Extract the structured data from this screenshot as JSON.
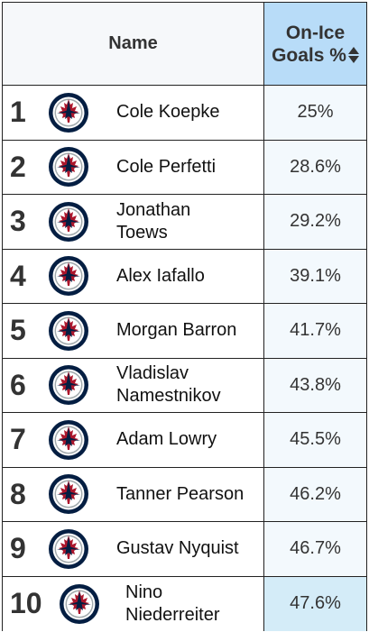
{
  "header": {
    "name_label": "Name",
    "pct_label_line1": "On-Ice",
    "pct_label_line2": "Goals %"
  },
  "icons": {
    "team_logo": "winnipeg-jets-logo",
    "sort": "sort-updown-icon"
  },
  "colors": {
    "header_bg": "#b8dcf8",
    "pct_bg": "#f3f9fd",
    "highlight_bg": "#d4ecf8",
    "logo_navy": "#041e42",
    "logo_red": "#ac162c"
  },
  "rows": [
    {
      "rank": "1",
      "name_lines": [
        "Cole Koepke"
      ],
      "pct": "25%"
    },
    {
      "rank": "2",
      "name_lines": [
        "Cole Perfetti"
      ],
      "pct": "28.6%"
    },
    {
      "rank": "3",
      "name_lines": [
        "Jonathan",
        "Toews"
      ],
      "pct": "29.2%"
    },
    {
      "rank": "4",
      "name_lines": [
        "Alex Iafallo"
      ],
      "pct": "39.1%"
    },
    {
      "rank": "5",
      "name_lines": [
        "Morgan Barron"
      ],
      "pct": "41.7%"
    },
    {
      "rank": "6",
      "name_lines": [
        "Vladislav",
        "Namestnikov"
      ],
      "pct": "43.8%"
    },
    {
      "rank": "7",
      "name_lines": [
        "Adam Lowry"
      ],
      "pct": "45.5%"
    },
    {
      "rank": "8",
      "name_lines": [
        "Tanner Pearson"
      ],
      "pct": "46.2%"
    },
    {
      "rank": "9",
      "name_lines": [
        "Gustav Nyquist"
      ],
      "pct": "46.7%"
    },
    {
      "rank": "10",
      "name_lines": [
        "Nino",
        "Niederreiter"
      ],
      "pct": "47.6%",
      "highlight": true
    }
  ]
}
